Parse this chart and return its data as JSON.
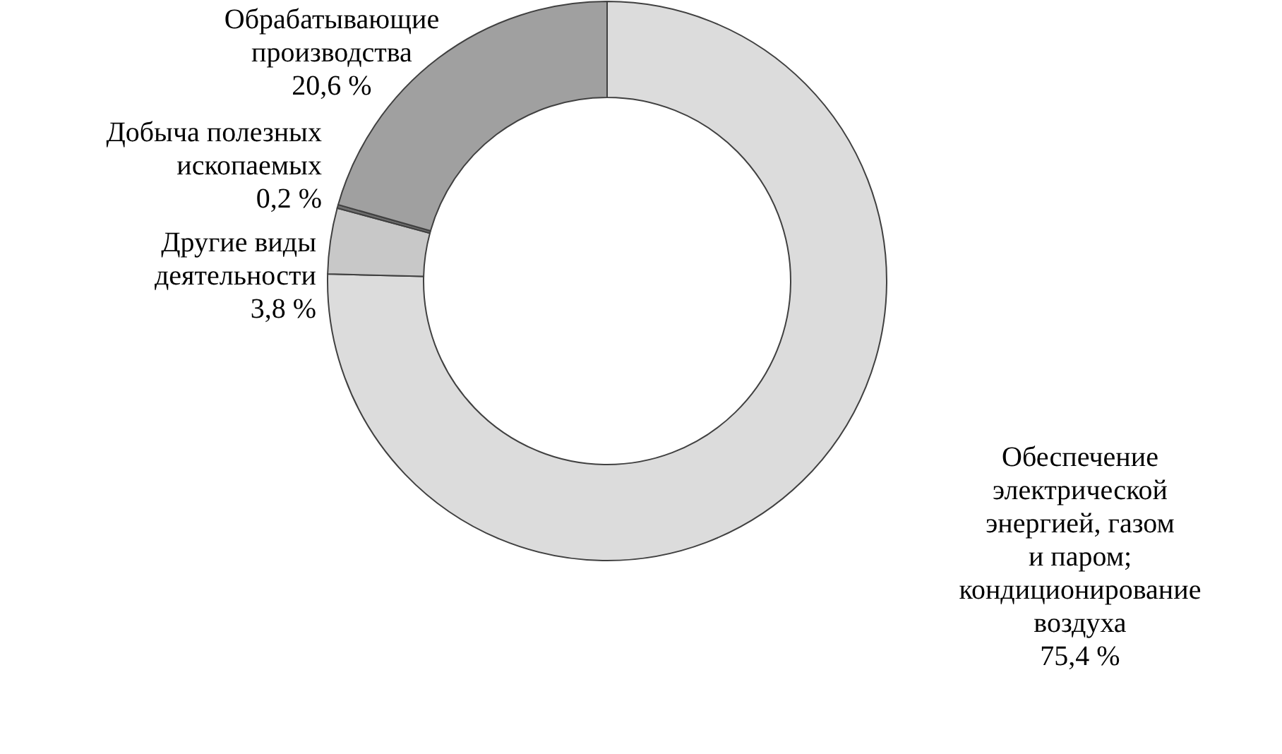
{
  "chart_data": {
    "type": "donut",
    "categories": [
      "Обеспечение\nэлектрической\nэнергией, газом\nи паром;\nкондиционирование\nвоздуха",
      "Другие виды\nдеятельности",
      "Добыча полезных\nископаемых",
      "Обрабатывающие\nпроизводства"
    ],
    "values": [
      75.4,
      3.8,
      0.2,
      20.6
    ],
    "value_labels": [
      "75,4 %",
      "3,8 %",
      "0,2 %",
      "20,6 %"
    ],
    "colors": [
      "#dcdcdc",
      "#c8c8c8",
      "#707070",
      "#a0a0a0"
    ]
  }
}
